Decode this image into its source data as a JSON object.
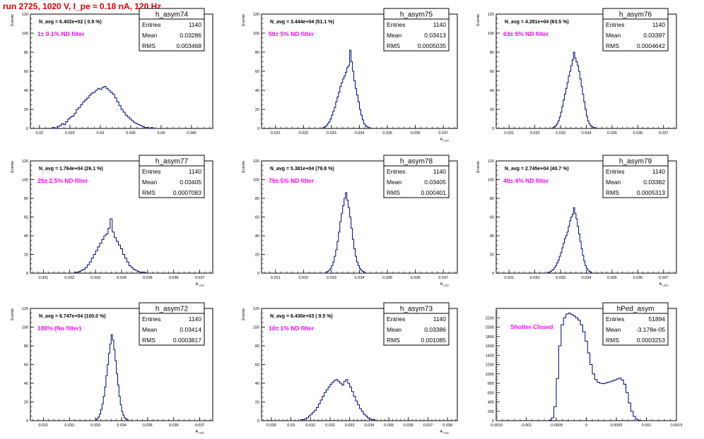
{
  "page": {
    "title": "run 2725,  1020 V, I_pe ≈ 0.18 nA, 120 Hz"
  },
  "colors": {
    "title": "#e00000",
    "histogram_line": "#000080",
    "annotation": "#ff00ff",
    "frame": "#000000",
    "background": "#ffffff"
  },
  "stats_labels": {
    "entries": "Entries",
    "mean": "Mean",
    "rms": "RMS"
  },
  "chart_data": [
    {
      "type": "histogram",
      "name": "h_asym74",
      "stats": {
        "entries": "1140",
        "mean": "0.03286",
        "rms": "0.003468"
      },
      "navg_text": "N_avg = 6.402e+02 ( 0.9 %)",
      "filter_text": "1± 0.1% ND filter",
      "ylabel": "Events",
      "xlabel": "",
      "xlim": [
        0.0185,
        0.0485
      ],
      "ylim": [
        0,
        120
      ],
      "xticks": [
        0.02,
        0.025,
        0.03,
        0.035,
        0.04,
        0.045
      ],
      "xtick_labels": [
        "0.02",
        "0.025",
        "0.03",
        "0.035",
        "0.04",
        "0.045"
      ],
      "yticks": [
        0,
        20,
        40,
        60,
        80,
        100,
        120
      ],
      "bin_start": 0.0222,
      "bin_width": 0.00035,
      "counts": [
        1,
        0,
        2,
        3,
        5,
        4,
        7,
        10,
        12,
        13,
        16,
        20,
        22,
        25,
        28,
        30,
        32,
        35,
        37,
        38,
        40,
        42,
        41,
        43,
        44,
        42,
        40,
        38,
        36,
        32,
        28,
        24,
        20,
        17,
        14,
        12,
        10,
        8,
        6,
        5,
        4,
        3,
        2,
        1,
        1,
        0,
        1
      ]
    },
    {
      "type": "histogram",
      "name": "h_asym75",
      "stats": {
        "entries": "1140",
        "mean": "0.03413",
        "rms": "0.0005035"
      },
      "navg_text": "N_avg = 3.444e+04 (51.1 %)",
      "filter_text": "50± 5% ND filter",
      "ylabel": "Events",
      "xlabel": "A_LED",
      "xlim": [
        0.0305,
        0.0375
      ],
      "ylim": [
        0,
        120
      ],
      "xticks": [
        0.031,
        0.032,
        0.033,
        0.034,
        0.035,
        0.036,
        0.037
      ],
      "xtick_labels": [
        "0.031",
        "0.032",
        "0.033",
        "0.034",
        "0.035",
        "0.036",
        "0.037"
      ],
      "yticks": [
        0,
        20,
        40,
        60,
        80,
        100,
        120
      ],
      "bin_start": 0.0327,
      "bin_width": 5e-05,
      "counts": [
        1,
        2,
        3,
        5,
        7,
        10,
        14,
        18,
        22,
        28,
        33,
        38,
        44,
        48,
        52,
        55,
        59,
        64,
        66,
        82,
        70,
        60,
        50,
        42,
        35,
        28,
        20,
        14,
        9,
        5,
        3,
        2,
        1
      ]
    },
    {
      "type": "histogram",
      "name": "h_asym76",
      "stats": {
        "entries": "1140",
        "mean": "0.03397",
        "rms": "0.0004642"
      },
      "navg_text": "N_avg = 4.281e+04 (63.5 %)",
      "filter_text": "63± 5% ND filter",
      "ylabel": "Events",
      "xlabel": "",
      "xlim": [
        0.0305,
        0.0375
      ],
      "ylim": [
        0,
        120
      ],
      "xticks": [
        0.031,
        0.032,
        0.033,
        0.034,
        0.035,
        0.036,
        0.037
      ],
      "xtick_labels": [
        "0.031",
        "0.032",
        "0.033",
        "0.034",
        "0.035",
        "0.036",
        "0.037"
      ],
      "yticks": [
        0,
        20,
        40,
        60,
        80,
        100,
        120
      ],
      "bin_start": 0.0327,
      "bin_width": 5e-05,
      "counts": [
        1,
        2,
        3,
        5,
        8,
        12,
        17,
        23,
        30,
        36,
        42,
        48,
        55,
        60,
        66,
        72,
        80,
        74,
        70,
        66,
        60,
        52,
        44,
        36,
        28,
        20,
        13,
        8,
        5,
        3,
        2,
        1,
        1
      ]
    },
    {
      "type": "histogram",
      "name": "h_asym77",
      "stats": {
        "entries": "1140",
        "mean": "0.03405",
        "rms": "0.0007083"
      },
      "navg_text": "N_avg = 1.764e+04 (26.1 %)",
      "filter_text": "25± 2.5% ND filter",
      "ylabel": "Events",
      "xlabel": "A_LED",
      "xlim": [
        0.0305,
        0.0375
      ],
      "ylim": [
        0,
        120
      ],
      "xticks": [
        0.031,
        0.032,
        0.033,
        0.034,
        0.035,
        0.036,
        0.037
      ],
      "xtick_labels": [
        "0.031",
        "0.032",
        "0.033",
        "0.034",
        "0.035",
        "0.036",
        "0.037"
      ],
      "yticks": [
        0,
        20,
        40,
        60,
        80,
        100,
        120
      ],
      "bin_start": 0.0322,
      "bin_width": 8e-05,
      "counts": [
        1,
        1,
        2,
        3,
        4,
        6,
        9,
        12,
        16,
        20,
        24,
        28,
        32,
        36,
        40,
        42,
        48,
        58,
        44,
        38,
        34,
        30,
        26,
        20,
        16,
        12,
        8,
        6,
        4,
        3,
        2,
        1,
        1,
        1
      ]
    },
    {
      "type": "histogram",
      "name": "h_asym78",
      "stats": {
        "entries": "1140",
        "mean": "0.03405",
        "rms": "0.000401"
      },
      "navg_text": "N_avg = 5.381e+04 (79.8 %)",
      "filter_text": "79± 5% ND filter",
      "ylabel": "Events",
      "xlabel": "A_LED",
      "xlim": [
        0.0305,
        0.0375
      ],
      "ylim": [
        0,
        120
      ],
      "xticks": [
        0.031,
        0.032,
        0.033,
        0.034,
        0.035,
        0.036,
        0.037
      ],
      "xtick_labels": [
        "0.031",
        "0.032",
        "0.033",
        "0.034",
        "0.035",
        "0.036",
        "0.037"
      ],
      "yticks": [
        0,
        20,
        40,
        60,
        80,
        100,
        120
      ],
      "bin_start": 0.0328,
      "bin_width": 5e-05,
      "counts": [
        1,
        2,
        3,
        5,
        8,
        12,
        18,
        25,
        34,
        44,
        55,
        64,
        72,
        80,
        86,
        78,
        70,
        60,
        48,
        36,
        26,
        18,
        12,
        8,
        5,
        3,
        2,
        1
      ]
    },
    {
      "type": "histogram",
      "name": "h_asym79",
      "stats": {
        "entries": "1140",
        "mean": "0.03382",
        "rms": "0.0005313"
      },
      "navg_text": "N_avg = 2.745e+04 (40.7 %)",
      "filter_text": "40± 4% ND filter",
      "ylabel": "Events",
      "xlabel": "A_LED",
      "xlim": [
        0.0305,
        0.0375
      ],
      "ylim": [
        0,
        120
      ],
      "xticks": [
        0.031,
        0.032,
        0.033,
        0.034,
        0.035,
        0.036,
        0.037
      ],
      "xtick_labels": [
        "0.031",
        "0.032",
        "0.033",
        "0.034",
        "0.035",
        "0.036",
        "0.037"
      ],
      "yticks": [
        0,
        20,
        40,
        60,
        80,
        100,
        120
      ],
      "bin_start": 0.0325,
      "bin_width": 5e-05,
      "counts": [
        1,
        1,
        2,
        3,
        4,
        6,
        8,
        11,
        14,
        18,
        22,
        27,
        32,
        37,
        40,
        44,
        50,
        56,
        60,
        63,
        70,
        64,
        58,
        50,
        42,
        34,
        26,
        19,
        13,
        8,
        5,
        3,
        2,
        1
      ]
    },
    {
      "type": "histogram",
      "name": "h_asym72",
      "stats": {
        "entries": "1140",
        "mean": "0.03414",
        "rms": "0.0003817"
      },
      "navg_text": "N_avg = 6.747e+04 (100.0 %)",
      "filter_text": "100% (No filter)",
      "ylabel": "Events",
      "xlabel": "A_LED",
      "xlim": [
        0.0305,
        0.0375
      ],
      "ylim": [
        0,
        120
      ],
      "xticks": [
        0.031,
        0.032,
        0.033,
        0.034,
        0.035,
        0.036,
        0.037
      ],
      "xtick_labels": [
        "0.031",
        "0.032",
        "0.033",
        "0.034",
        "0.035",
        "0.036",
        "0.037"
      ],
      "yticks": [
        0,
        20,
        40,
        60,
        80,
        100,
        120
      ],
      "bin_start": 0.033,
      "bin_width": 5e-05,
      "counts": [
        1,
        2,
        4,
        7,
        12,
        18,
        26,
        36,
        48,
        60,
        72,
        82,
        92,
        86,
        76,
        64,
        50,
        38,
        26,
        17,
        10,
        6,
        3,
        2,
        1
      ]
    },
    {
      "type": "histogram",
      "name": "h_asym73",
      "stats": {
        "entries": "1140",
        "mean": "0.03386",
        "rms": "0.001085"
      },
      "navg_text": "N_avg = 6.430e+03 ( 9.5 %)",
      "filter_text": "10± 1% ND filter",
      "ylabel": "Events",
      "xlabel": "A_LED",
      "xlim": [
        0.0285,
        0.0385
      ],
      "ylim": [
        0,
        120
      ],
      "xticks": [
        0.029,
        0.03,
        0.031,
        0.032,
        0.033,
        0.034,
        0.035,
        0.036,
        0.037,
        0.038
      ],
      "xtick_labels": [
        "0.029",
        "0.03",
        "0.031",
        "0.032",
        "0.033",
        "0.034",
        "0.035",
        "0.036",
        "0.037",
        "0.038"
      ],
      "yticks": [
        0,
        20,
        40,
        60,
        80,
        100,
        120
      ],
      "bin_start": 0.0305,
      "bin_width": 0.0001,
      "counts": [
        1,
        1,
        2,
        3,
        5,
        7,
        9,
        11,
        14,
        18,
        22,
        26,
        30,
        33,
        36,
        39,
        41,
        43,
        44,
        42,
        40,
        38,
        42,
        44,
        40,
        36,
        31,
        26,
        21,
        17,
        13,
        10,
        7,
        5,
        3,
        2,
        1,
        1
      ]
    },
    {
      "type": "histogram",
      "name": "hPed_asym",
      "stats": {
        "entries": "51894",
        "mean": "-3.178e-05",
        "rms": "0.0003253"
      },
      "navg_text": "",
      "filter_text": "Shutter Closed",
      "ylabel": "",
      "xlabel": "",
      "xlim": [
        -0.0015,
        0.0015
      ],
      "ylim": [
        0,
        2400
      ],
      "xticks": [
        -0.0015,
        -0.001,
        -0.0005,
        0,
        0.0005,
        0.001,
        0.0015
      ],
      "xtick_labels": [
        "-0.0015",
        "-0.001",
        "-0.0005",
        "0",
        "0.0005",
        "0.001",
        "0.0015"
      ],
      "yticks": [
        0,
        200,
        400,
        600,
        800,
        1000,
        1200,
        1400,
        1600,
        1800,
        2000,
        2200
      ],
      "bin_start": -0.00062,
      "bin_width": 4e-05,
      "counts": [
        10,
        60,
        300,
        900,
        1600,
        2050,
        2200,
        2280,
        2300,
        2270,
        2240,
        2200,
        2150,
        2050,
        1900,
        1700,
        1450,
        1200,
        1000,
        880,
        820,
        800,
        790,
        800,
        820,
        830,
        850,
        870,
        890,
        910,
        870,
        780,
        600,
        380,
        200,
        90,
        30,
        10
      ]
    }
  ]
}
